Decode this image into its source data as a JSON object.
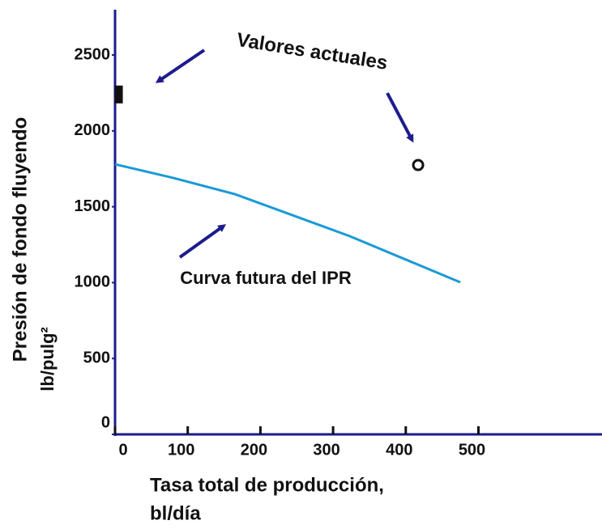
{
  "chart_data": {
    "type": "line",
    "ylabel": [
      "Presión de fondo fluyendo",
      "lb/pulg²"
    ],
    "xlabel": [
      "Tasa total de producción,",
      "bl/día"
    ],
    "annotations": [
      "Valores actuales",
      "Curva futura del IPR"
    ],
    "x": [
      0,
      80,
      165,
      323,
      475
    ],
    "values": [
      1780,
      1690,
      1583,
      1306,
      1002
    ],
    "color": "#1a9ad6",
    "points": {
      "x": [
        4,
        417
      ],
      "y": [
        2240,
        1775
      ],
      "markers": [
        "square",
        "circle"
      ]
    },
    "axis_color": "#1c1c8c",
    "xlim": [
      0,
      670
    ],
    "ylim": [
      0,
      2500
    ],
    "xticks": [
      0,
      100,
      200,
      300,
      400,
      500
    ],
    "yticks": [
      0,
      500,
      1000,
      1500,
      2000,
      2500
    ]
  }
}
